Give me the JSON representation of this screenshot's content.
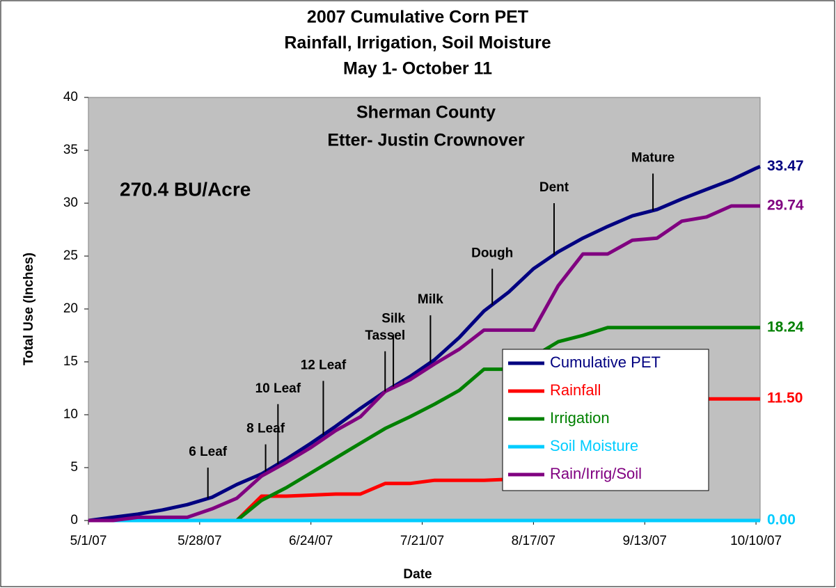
{
  "chart_data": {
    "type": "line",
    "title_lines": [
      "2007 Cumulative Corn PET",
      "Rainfall, Irrigation, Soil Moisture",
      "May 1- October 11"
    ],
    "inner_lines": [
      "Sherman County",
      "Etter- Justin Crownover"
    ],
    "note": "270.4 BU/Acre",
    "x_label": "Date",
    "y_label": "Total Use (Inches)",
    "xlim": [
      "5/1/07",
      "10/11/07"
    ],
    "xticks": [
      "5/1/07",
      "5/28/07",
      "6/24/07",
      "7/21/07",
      "8/17/07",
      "9/13/07",
      "10/10/07"
    ],
    "ylim": [
      0,
      40
    ],
    "yticks": [
      0,
      5,
      10,
      15,
      20,
      25,
      30,
      35,
      40
    ],
    "grid": false,
    "x": [
      "5/1/07",
      "5/7/07",
      "5/13/07",
      "5/19/07",
      "5/25/07",
      "5/31/07",
      "6/6/07",
      "6/12/07",
      "6/18/07",
      "6/24/07",
      "6/30/07",
      "7/6/07",
      "7/12/07",
      "7/18/07",
      "7/24/07",
      "7/30/07",
      "8/5/07",
      "8/11/07",
      "8/17/07",
      "8/23/07",
      "8/29/07",
      "9/4/07",
      "9/10/07",
      "9/16/07",
      "9/22/07",
      "9/28/07",
      "10/4/07",
      "10/10/07",
      "10/11/07"
    ],
    "series": [
      {
        "name": "Cumulative PET",
        "color": "#000080",
        "end_label": "33.47",
        "values": [
          0,
          0.3,
          0.6,
          1.0,
          1.5,
          2.2,
          3.4,
          4.4,
          5.8,
          7.3,
          8.9,
          10.6,
          12.2,
          13.6,
          15.2,
          17.3,
          19.8,
          21.6,
          23.8,
          25.4,
          26.7,
          27.8,
          28.8,
          29.4,
          30.4,
          31.3,
          32.2,
          33.3,
          33.47
        ]
      },
      {
        "name": "Rainfall",
        "color": "#ff0000",
        "end_label": "11.50",
        "values": [
          0,
          0,
          0,
          0,
          0,
          0,
          0,
          2.3,
          2.3,
          2.4,
          2.5,
          2.5,
          3.5,
          3.5,
          3.8,
          3.8,
          3.8,
          3.9,
          4.5,
          6.5,
          9.0,
          10.5,
          11.5,
          11.5,
          11.5,
          11.5,
          11.5,
          11.5,
          11.5
        ]
      },
      {
        "name": "Irrigation",
        "color": "#008000",
        "end_label": "18.24",
        "values": [
          0,
          0,
          0,
          0,
          0,
          0,
          0,
          1.9,
          3.1,
          4.5,
          5.9,
          7.3,
          8.7,
          9.8,
          11.0,
          12.3,
          14.3,
          14.3,
          15.5,
          16.9,
          17.5,
          18.24,
          18.24,
          18.24,
          18.24,
          18.24,
          18.24,
          18.24,
          18.24
        ]
      },
      {
        "name": "Soil Moisture",
        "color": "#00ccff",
        "end_label": "0.00",
        "values": [
          0,
          0,
          0,
          0,
          0,
          0,
          0,
          0,
          0,
          0,
          0,
          0,
          0,
          0,
          0,
          0,
          0,
          0,
          0,
          0,
          0,
          0,
          0,
          0,
          0,
          0,
          0,
          0,
          0
        ]
      },
      {
        "name": "Rain/Irrig/Soil",
        "color": "#800080",
        "end_label": "29.74",
        "values": [
          0,
          0,
          0.3,
          0.3,
          0.3,
          1.1,
          2.1,
          4.2,
          5.5,
          6.9,
          8.5,
          9.8,
          12.2,
          13.3,
          14.8,
          16.2,
          18.0,
          18.0,
          18.0,
          22.2,
          25.2,
          25.2,
          26.5,
          26.7,
          28.3,
          28.7,
          29.74,
          29.74,
          29.74
        ]
      }
    ],
    "annotations": [
      {
        "text": "6 Leaf",
        "x": "5/30/07",
        "y": 5.0
      },
      {
        "text": "8 Leaf",
        "x": "6/13/07",
        "y": 7.2
      },
      {
        "text": "10 Leaf",
        "x": "6/16/07",
        "y": 11
      },
      {
        "text": "12 Leaf",
        "x": "6/27/07",
        "y": 13.2
      },
      {
        "text": "Tassel",
        "x": "7/12/07",
        "y": 16
      },
      {
        "text": "Silk",
        "x": "7/14/07",
        "y": 17.6
      },
      {
        "text": "Milk",
        "x": "7/23/07",
        "y": 19.4
      },
      {
        "text": "Dough",
        "x": "8/7/07",
        "y": 23.8
      },
      {
        "text": "Dent",
        "x": "8/22/07",
        "y": 30
      },
      {
        "text": "Mature",
        "x": "9/15/07",
        "y": 32.8
      }
    ]
  }
}
